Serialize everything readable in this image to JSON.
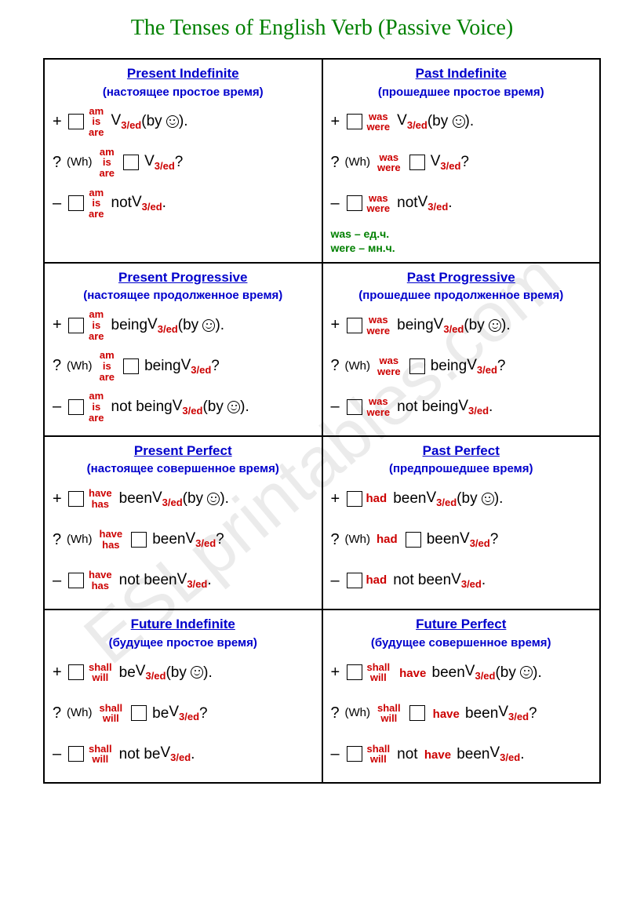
{
  "title": "The Tenses of English Verb (Passive Voice)",
  "watermark": "ESLprintables.com",
  "aux": {
    "am_is_are": [
      "am",
      "is",
      "are"
    ],
    "was_were": [
      "was",
      "were"
    ],
    "have_has": [
      "have",
      "has"
    ],
    "shall_will": [
      "shall",
      "will"
    ],
    "had": "had",
    "have": "have"
  },
  "v3": "3/ed",
  "cells": [
    {
      "title": "Present Indefinite",
      "sub": "(настоящее простое время)",
      "aux": "am_is_are",
      "mid": "",
      "by": true,
      "note": null
    },
    {
      "title": "Past Indefinite",
      "sub": "(прошедшее простое время)",
      "aux": "was_were",
      "mid": "",
      "by": true,
      "note": "was – ед.ч.\nwere – мн.ч."
    },
    {
      "title": "Present Progressive",
      "sub": "(настоящее продолженное время)",
      "aux": "am_is_are",
      "mid": "being ",
      "by": true,
      "neg_by": true,
      "note": null
    },
    {
      "title": "Past Progressive",
      "sub": "(прошедшее продолженное время)",
      "aux": "was_were",
      "mid": "being ",
      "by": true,
      "note": null
    },
    {
      "title": "Present Perfect",
      "sub": "(настоящее совершенное время)",
      "aux": "have_has",
      "mid": "been ",
      "by": true,
      "note": null
    },
    {
      "title": "Past Perfect",
      "sub": "(предпрошедшее время)",
      "aux_single": "had",
      "mid": "been ",
      "by": true,
      "note": null
    },
    {
      "title": "Future Indefinite",
      "sub": "(будущее простое время)",
      "aux": "shall_will",
      "mid": "be ",
      "by": true,
      "note": null
    },
    {
      "title": "Future Perfect",
      "sub": "(будущее совершенное время)",
      "aux": "shall_will",
      "mid_red": "have ",
      "mid2": "been ",
      "by": true,
      "note": null
    }
  ]
}
